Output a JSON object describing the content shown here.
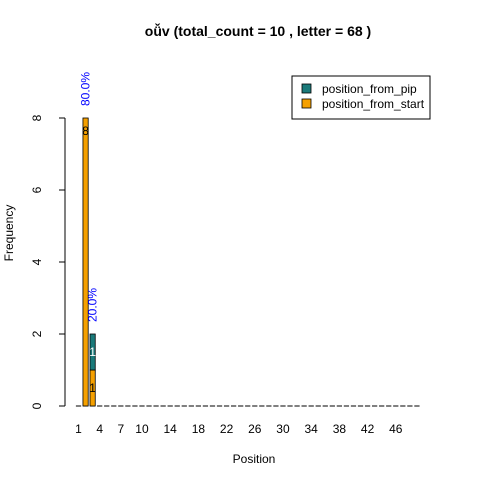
{
  "chart_data": {
    "type": "bar",
    "title": "oǚv  (total_count =  10 , letter = 68 )",
    "xlabel": "Position",
    "ylabel": "Frequency",
    "ylim": [
      0,
      8
    ],
    "y_ticks": [
      "0",
      "2",
      "4",
      "6",
      "8"
    ],
    "x_ticks": [
      "1",
      "4",
      "7",
      "10",
      "14",
      "18",
      "22",
      "26",
      "30",
      "34",
      "38",
      "42",
      "46"
    ],
    "categories": [
      "1",
      "2",
      "3",
      "4",
      "5",
      "6",
      "7",
      "8",
      "9",
      "10",
      "11",
      "12",
      "13",
      "14",
      "15",
      "16",
      "17",
      "18",
      "19",
      "20",
      "21",
      "22",
      "23",
      "24",
      "25",
      "26",
      "27",
      "28",
      "29",
      "30",
      "31",
      "32",
      "33",
      "34",
      "35",
      "36",
      "37",
      "38",
      "39",
      "40",
      "41",
      "42",
      "43",
      "44",
      "45",
      "46",
      "47",
      "48",
      "49"
    ],
    "series": [
      {
        "name": "position_from_pip",
        "color": "#1a7a7a",
        "values": [
          0,
          0,
          1,
          0,
          0,
          0,
          0,
          0,
          0,
          0,
          0,
          0,
          0,
          0,
          0,
          0,
          0,
          0,
          0,
          0,
          0,
          0,
          0,
          0,
          0,
          0,
          0,
          0,
          0,
          0,
          0,
          0,
          0,
          0,
          0,
          0,
          0,
          0,
          0,
          0,
          0,
          0,
          0,
          0,
          0,
          0,
          0,
          0,
          0
        ]
      },
      {
        "name": "position_from_start",
        "color": "#f5a000",
        "values": [
          0,
          8,
          1,
          0,
          0,
          0,
          0,
          0,
          0,
          0,
          0,
          0,
          0,
          0,
          0,
          0,
          0,
          0,
          0,
          0,
          0,
          0,
          0,
          0,
          0,
          0,
          0,
          0,
          0,
          0,
          0,
          0,
          0,
          0,
          0,
          0,
          0,
          0,
          0,
          0,
          0,
          0,
          0,
          0,
          0,
          0,
          0,
          0,
          0
        ]
      }
    ],
    "segment_labels": [
      {
        "category": "2",
        "series": "position_from_start",
        "text": "8"
      },
      {
        "category": "3",
        "series": "position_from_start",
        "text": "1"
      },
      {
        "category": "3",
        "series": "position_from_pip",
        "text": "1"
      }
    ],
    "percent_labels": [
      {
        "category": "2",
        "text": "80.0%"
      },
      {
        "category": "3",
        "text": "20.0%"
      }
    ],
    "percent_label_color": "#0000ff",
    "legend_position": "top-right",
    "grid": false
  }
}
